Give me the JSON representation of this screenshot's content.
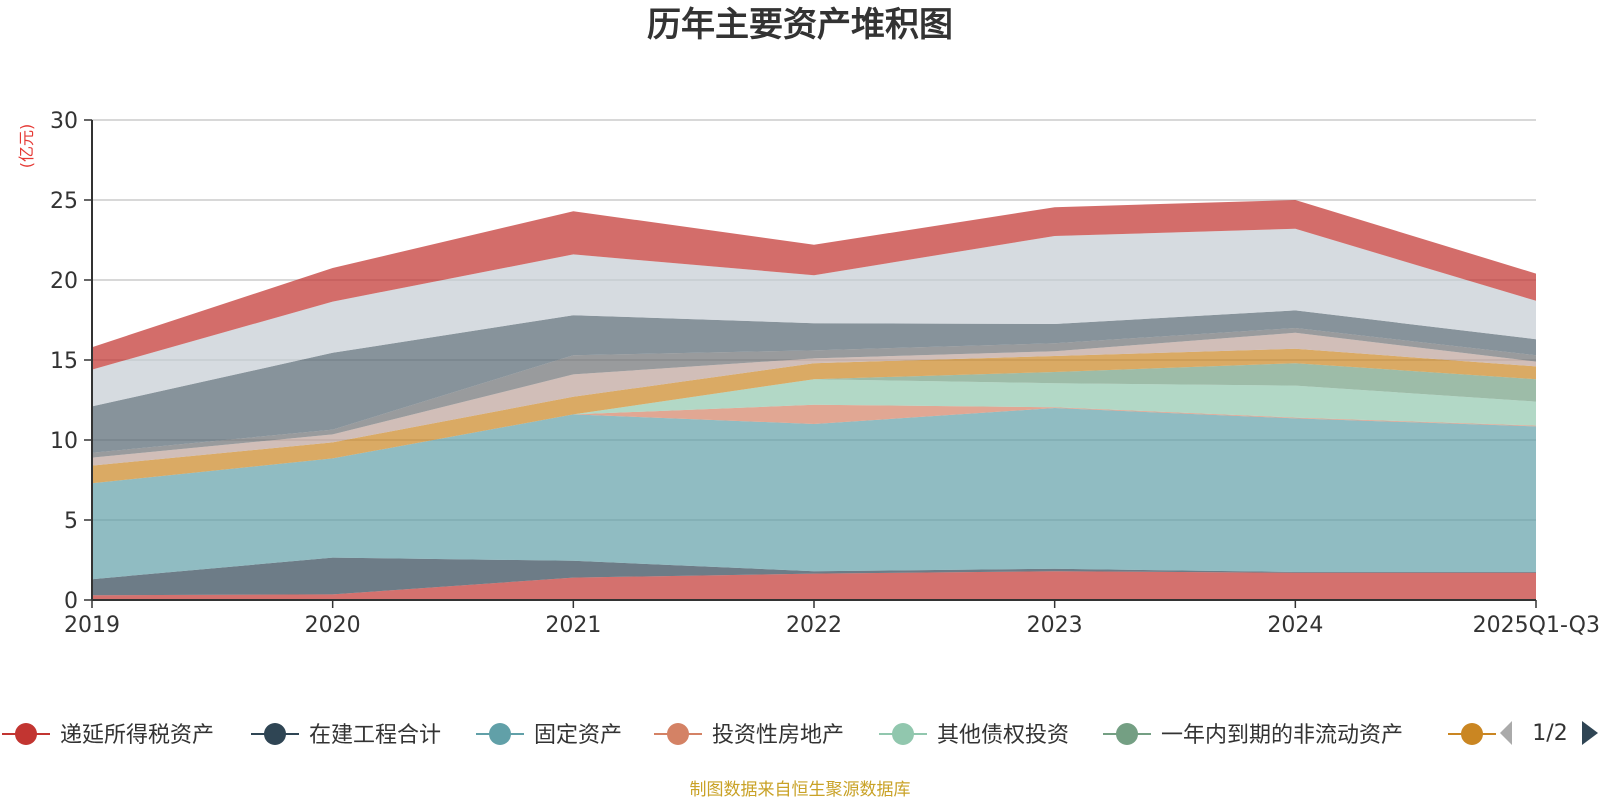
{
  "chart_data": {
    "type": "area",
    "stacked": true,
    "title": "历年主要资产堆积图",
    "ylabel": "(亿元)",
    "xlabel": "",
    "ylim": [
      0,
      30
    ],
    "yticks": [
      0,
      5,
      10,
      15,
      20,
      25,
      30
    ],
    "grid": true,
    "categories": [
      "2019",
      "2020",
      "2021",
      "2022",
      "2023",
      "2024",
      "2025Q1-Q3"
    ],
    "series": [
      {
        "name": "递延所得税资产",
        "color": "#c23531",
        "values": [
          0.3,
          0.35,
          1.4,
          1.65,
          1.8,
          1.7,
          1.7
        ]
      },
      {
        "name": "在建工程合计",
        "color": "#2f4554",
        "values": [
          1.0,
          2.3,
          1.05,
          0.15,
          0.15,
          0.05,
          0.05
        ]
      },
      {
        "name": "固定资产",
        "color": "#61a0a8",
        "values": [
          6.0,
          6.2,
          9.15,
          9.2,
          10.05,
          9.6,
          9.1
        ]
      },
      {
        "name": "投资性房地产",
        "color": "#d48265",
        "values": [
          0.0,
          0.0,
          0.0,
          1.2,
          0.05,
          0.05,
          0.05
        ]
      },
      {
        "name": "其他债权投资",
        "color": "#91c7ae",
        "values": [
          0.0,
          0.0,
          0.0,
          1.6,
          1.5,
          2.0,
          1.5
        ]
      },
      {
        "name": "一年内到期的非流动资产",
        "color": "#749f83",
        "values": [
          0.0,
          0.0,
          0.0,
          0.0,
          0.7,
          1.4,
          1.4
        ]
      },
      {
        "name": "",
        "color": "#ca8622",
        "values": [
          1.1,
          1.0,
          1.1,
          1.0,
          1.0,
          0.9,
          0.8
        ]
      },
      {
        "name": "",
        "color": "#bda29a",
        "values": [
          0.5,
          0.5,
          1.4,
          0.3,
          0.3,
          1.0,
          0.3
        ]
      },
      {
        "name": "",
        "color": "#6e7074",
        "values": [
          0.3,
          0.3,
          1.2,
          0.5,
          0.5,
          0.3,
          0.4
        ]
      },
      {
        "name": "",
        "color": "#546570",
        "values": [
          2.9,
          4.8,
          2.5,
          1.7,
          1.2,
          1.1,
          1.0
        ]
      },
      {
        "name": "",
        "color": "#c4ccd3",
        "values": [
          2.3,
          3.2,
          3.8,
          3.0,
          5.5,
          5.1,
          2.4
        ]
      },
      {
        "name": "",
        "color": "#c23531",
        "values": [
          1.4,
          2.1,
          2.7,
          1.9,
          1.8,
          1.8,
          1.7
        ]
      }
    ],
    "legend_page": "1/2",
    "legend_position": "bottom"
  },
  "source": "制图数据来自恒生聚源数据库",
  "icons": {
    "prev": "arrow-left-icon",
    "next": "arrow-right-icon"
  }
}
